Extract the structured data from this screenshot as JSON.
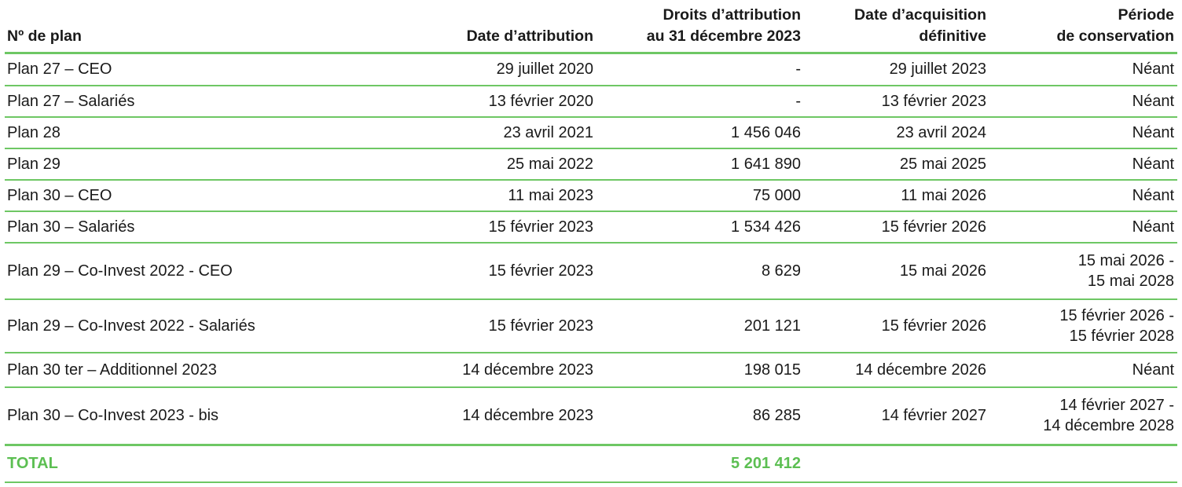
{
  "headers": {
    "plan": "Nº de plan",
    "attribution_date": "Date d’attribution",
    "rights_line1": "Droits d’attribution",
    "rights_line2": "au 31 décembre 2023",
    "acquisition_line1": "Date d’acquisition",
    "acquisition_line2": "définitive",
    "period_line1": "Période",
    "period_line2": "de conservation"
  },
  "rows": [
    {
      "plan": "Plan 27 – CEO",
      "attribution": "29 juillet 2020",
      "rights": "-",
      "acquisition": "29 juillet 2023",
      "period1": "Néant",
      "period2": ""
    },
    {
      "plan": "Plan 27 – Salariés",
      "attribution": "13 février 2020",
      "rights": "-",
      "acquisition": "13 février 2023",
      "period1": "Néant",
      "period2": ""
    },
    {
      "plan": "Plan 28",
      "attribution": "23 avril 2021",
      "rights": "1 456 046",
      "acquisition": "23 avril 2024",
      "period1": "Néant",
      "period2": ""
    },
    {
      "plan": "Plan 29",
      "attribution": "25 mai 2022",
      "rights": "1 641 890",
      "acquisition": "25 mai 2025",
      "period1": "Néant",
      "period2": ""
    },
    {
      "plan": "Plan 30 – CEO",
      "attribution": "11 mai 2023",
      "rights": "75 000",
      "acquisition": "11 mai 2026",
      "period1": "Néant",
      "period2": ""
    },
    {
      "plan": "Plan 30 – Salariés",
      "attribution": "15 février 2023",
      "rights": "1 534 426",
      "acquisition": "15 février 2026",
      "period1": "Néant",
      "period2": ""
    },
    {
      "plan": "Plan 29 – Co-Invest 2022 - CEO",
      "attribution": "15 février 2023",
      "rights": "8 629",
      "acquisition": "15 mai 2026",
      "period1": "15 mai 2026 -",
      "period2": "15 mai 2028"
    },
    {
      "plan": "Plan 29 – Co-Invest 2022 - Salariés",
      "attribution": "15 février 2023",
      "rights": "201 121",
      "acquisition": "15 février 2026",
      "period1": "15 février 2026 -",
      "period2": "15 février 2028"
    },
    {
      "plan": "Plan 30 ter – Additionnel 2023",
      "attribution": "14 décembre 2023",
      "rights": "198 015",
      "acquisition": "14 décembre 2026",
      "period1": "Néant",
      "period2": ""
    },
    {
      "plan": "Plan 30 – Co-Invest 2023 - bis",
      "attribution": "14 décembre 2023",
      "rights": "86 285",
      "acquisition": "14 février 2027",
      "period1": "14 février 2027 -",
      "period2": "14 décembre 2028"
    }
  ],
  "total": {
    "label": "TOTAL",
    "rights": "5 201 412"
  },
  "colors": {
    "accent_green": "#6ec764",
    "total_text": "#5cbf52"
  }
}
